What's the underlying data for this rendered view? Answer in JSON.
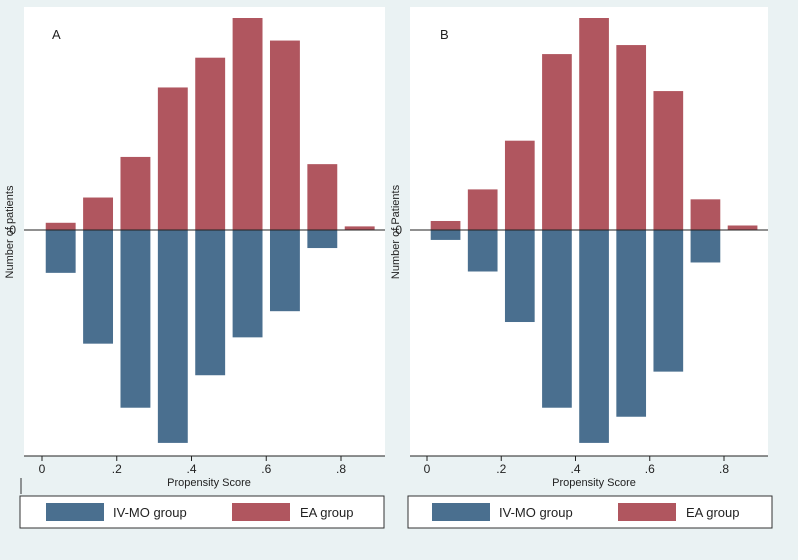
{
  "colors": {
    "background": "#eaf2f3",
    "plot_background": "#ffffff",
    "iv_mo": "#4a6f8f",
    "ea": "#b0565f",
    "axis": "#222222"
  },
  "chart_data": [
    {
      "type": "bar",
      "panel_label": "A",
      "xlabel": "Propensity Score",
      "ylabel": "Number of patients",
      "y_zero_label": "0",
      "xlim": [
        -0.05,
        0.9
      ],
      "x_ticks": [
        0,
        0.2,
        0.4,
        0.6,
        0.8
      ],
      "x_tick_labels": [
        "0",
        ".2",
        ".4",
        ".6",
        ".8"
      ],
      "ylim": [
        -47,
        47
      ],
      "bin_width": 0.08,
      "x": [
        0.05,
        0.15,
        0.25,
        0.35,
        0.45,
        0.55,
        0.65,
        0.75,
        0.85
      ],
      "series": [
        {
          "name": "EA group",
          "direction": "up",
          "values": [
            1.6,
            7.2,
            16.2,
            31.6,
            38.2,
            47.0,
            42.0,
            14.6,
            0.8
          ]
        },
        {
          "name": "IV-MO group",
          "direction": "down",
          "values": [
            9.5,
            25.2,
            39.4,
            47.2,
            32.2,
            23.8,
            18.0,
            4.0,
            0
          ]
        }
      ],
      "legend": [
        "IV-MO group",
        "EA group"
      ]
    },
    {
      "type": "bar",
      "panel_label": "B",
      "xlabel": "Propensity Score",
      "ylabel": "Number of Patients",
      "y_zero_label": "0",
      "xlim": [
        -0.05,
        0.9
      ],
      "x_ticks": [
        0,
        0.2,
        0.4,
        0.6,
        0.8
      ],
      "x_tick_labels": [
        "0",
        ".2",
        ".4",
        ".6",
        ".8"
      ],
      "ylim": [
        -47,
        47
      ],
      "bin_width": 0.08,
      "x": [
        0.05,
        0.15,
        0.25,
        0.35,
        0.45,
        0.55,
        0.65,
        0.75,
        0.85
      ],
      "series": [
        {
          "name": "EA group",
          "direction": "up",
          "values": [
            2.0,
            9.0,
            19.8,
            39.0,
            47.0,
            41.0,
            30.8,
            6.8,
            1.0
          ]
        },
        {
          "name": "IV-MO group",
          "direction": "down",
          "values": [
            2.2,
            9.2,
            20.4,
            39.4,
            47.2,
            41.4,
            31.4,
            7.2,
            0
          ]
        }
      ],
      "legend": [
        "IV-MO group",
        "EA group"
      ]
    }
  ]
}
